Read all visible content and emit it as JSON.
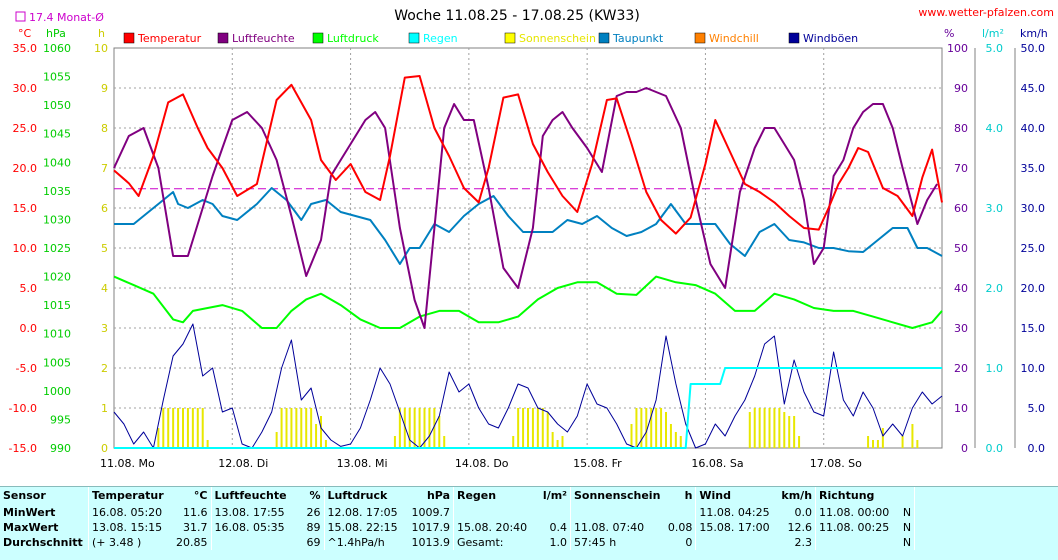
{
  "header": {
    "title": "Woche 11.08.25 - 17.08.25 (KW33)",
    "site": "www.wetter-pfalzen.com",
    "monthly_avg_label": "17.4 Monat-Ø"
  },
  "units": {
    "temp": "°C",
    "pressure": "hPa",
    "sun": "h",
    "humidity": "%",
    "rain": "l/m²",
    "wind": "km/h"
  },
  "chart_data": {
    "type": "line",
    "title": "Woche 11.08.25 - 17.08.25 (KW33)",
    "x_labels": [
      "11.08. Mo",
      "12.08. Di",
      "13.08. Mi",
      "14.08. Do",
      "15.08. Fr",
      "16.08. Sa",
      "17.08. So"
    ],
    "x_range_hours": [
      0,
      168
    ],
    "axes": {
      "temp": {
        "ticks": [
          "35.0",
          "30.0",
          "25.0",
          "20.0",
          "15.0",
          "10.0",
          "5.0",
          "0.0",
          "-5.0",
          "-10.0",
          "-15.0"
        ],
        "range": [
          -15,
          35
        ],
        "color": "#ff0000"
      },
      "pressure": {
        "ticks": [
          "1060",
          "1055",
          "1050",
          "1045",
          "1040",
          "1035",
          "1030",
          "1025",
          "1020",
          "1015",
          "1010",
          "1005",
          "1000",
          "995",
          "990"
        ],
        "range": [
          990,
          1060
        ],
        "color": "#00cc00"
      },
      "sun": {
        "ticks": [
          "10",
          "9",
          "8",
          "7",
          "6",
          "5",
          "4",
          "3",
          "2",
          "1",
          "0"
        ],
        "range": [
          0,
          10
        ],
        "color": "#cccc00"
      },
      "humidity": {
        "ticks": [
          "100",
          "90",
          "80",
          "70",
          "60",
          "50",
          "40",
          "30",
          "20",
          "10",
          "0"
        ],
        "range": [
          0,
          100
        ],
        "color": "#660099"
      },
      "rain": {
        "ticks": [
          "5.0",
          "4.0",
          "3.0",
          "2.0",
          "1.0",
          "0.0"
        ],
        "range": [
          0,
          5
        ],
        "color": "#00cccc"
      },
      "wind": {
        "ticks": [
          "50.0",
          "45.0",
          "40.0",
          "35.0",
          "30.0",
          "25.0",
          "20.0",
          "15.0",
          "10.0",
          "5.0",
          "0.0"
        ],
        "range": [
          0,
          50
        ],
        "color": "#000099"
      }
    },
    "legend": [
      {
        "name": "Temperatur",
        "color": "#ff0000"
      },
      {
        "name": "Luftfeuchte",
        "color": "#800080"
      },
      {
        "name": "Luftdruck",
        "color": "#00ff00"
      },
      {
        "name": "Regen",
        "color": "#00ffff"
      },
      {
        "name": "Sonnenschein",
        "color": "#ffff00"
      },
      {
        "name": "Taupunkt",
        "color": "#0080c0"
      },
      {
        "name": "Windchill",
        "color": "#ff8000"
      },
      {
        "name": "Windböen",
        "color": "#000099"
      }
    ],
    "monthly_avg_temp": 17.4,
    "series": [
      {
        "name": "Temperatur",
        "axis": "temp",
        "color": "#ff0000",
        "x": [
          0,
          3,
          5,
          8,
          11,
          14,
          17,
          19,
          22,
          25,
          29,
          33,
          36,
          40,
          42,
          45,
          48,
          51,
          54,
          56,
          59,
          62,
          65,
          68,
          71,
          74,
          76,
          79,
          82,
          85,
          88,
          91,
          94,
          97,
          100,
          102,
          105,
          108,
          111,
          114,
          117,
          120,
          122,
          125,
          128,
          131,
          134,
          137,
          140,
          143,
          145,
          147,
          149,
          151,
          153,
          156,
          159,
          162,
          164,
          166,
          168
        ],
        "y": [
          19.7,
          18.1,
          16.5,
          21.5,
          28.2,
          29.2,
          25,
          22.5,
          20,
          16.5,
          18,
          28.5,
          30.4,
          26,
          21,
          18.5,
          20.5,
          17,
          16,
          21.5,
          31.3,
          31.5,
          25,
          21.5,
          17.5,
          15.7,
          20,
          28.8,
          29.2,
          23,
          19.5,
          16.5,
          14.5,
          20.5,
          28.5,
          28.7,
          23,
          17,
          13.5,
          11.8,
          13.8,
          20.5,
          26,
          22,
          18,
          17,
          15.7,
          14,
          12.5,
          12.3,
          15,
          18,
          20,
          22.5,
          22,
          17.5,
          16.5,
          14,
          18.8,
          22.3,
          15.7
        ]
      },
      {
        "name": "Luftfeuchte",
        "axis": "humidity",
        "color": "#800080",
        "x": [
          0,
          3,
          6,
          9,
          12,
          15,
          18,
          20,
          22,
          24,
          27,
          30,
          33,
          36,
          39,
          42,
          44,
          46,
          48,
          51,
          53,
          55,
          58,
          61,
          63,
          65,
          67,
          69,
          71,
          73,
          76,
          79,
          82,
          85,
          87,
          89,
          91,
          93,
          96,
          99,
          102,
          104,
          106,
          108,
          110,
          112,
          115,
          118,
          121,
          124,
          127,
          130,
          132,
          134,
          136,
          138,
          140,
          142,
          144,
          146,
          148,
          150,
          152,
          154,
          156,
          158,
          160,
          163,
          165,
          167
        ],
        "y": [
          70,
          78,
          80,
          70,
          48,
          48,
          60,
          68,
          75,
          82,
          84,
          80,
          72,
          58,
          43,
          52,
          68,
          72,
          76,
          82,
          84,
          80,
          55,
          37,
          30,
          55,
          80,
          86,
          82,
          82,
          65,
          45,
          40,
          55,
          78,
          82,
          84,
          80,
          75,
          69,
          88,
          89,
          89,
          90,
          89,
          88,
          80,
          62,
          46,
          40,
          64,
          75,
          80,
          80,
          76,
          72,
          62,
          46,
          50,
          68,
          72,
          80,
          84,
          86,
          86,
          80,
          70,
          56,
          62,
          66
        ]
      },
      {
        "name": "Luftdruck",
        "axis": "pressure",
        "color": "#00ff00",
        "x": [
          0,
          4,
          8,
          12,
          14,
          16,
          19,
          22,
          26,
          30,
          33,
          36,
          39,
          42,
          46,
          50,
          54,
          58,
          62,
          66,
          70,
          74,
          78,
          82,
          86,
          90,
          94,
          98,
          102,
          106,
          110,
          114,
          118,
          122,
          126,
          130,
          134,
          138,
          142,
          146,
          150,
          154,
          158,
          162,
          166,
          168
        ],
        "y": [
          1020,
          1018.5,
          1017,
          1012.5,
          1012,
          1014,
          1014.5,
          1015,
          1014,
          1011,
          1011,
          1014,
          1016,
          1017,
          1015,
          1012.5,
          1011,
          1011,
          1013,
          1014,
          1014,
          1012,
          1012,
          1013,
          1016,
          1018,
          1019,
          1019,
          1017,
          1016.8,
          1020,
          1019,
          1018.5,
          1017,
          1014,
          1014,
          1017,
          1016,
          1014.5,
          1014,
          1014,
          1013,
          1012,
          1011,
          1012,
          1014
        ]
      },
      {
        "name": "Taupunkt",
        "axis": "temp",
        "color": "#0080c0",
        "x": [
          0,
          4,
          8,
          10,
          12,
          13,
          15,
          18,
          20,
          22,
          25,
          29,
          32,
          35,
          38,
          40,
          43,
          46,
          49,
          52,
          55,
          58,
          60,
          62,
          65,
          68,
          71,
          74,
          77,
          80,
          83,
          86,
          89,
          92,
          95,
          98,
          101,
          104,
          107,
          110,
          113,
          116,
          119,
          122,
          125,
          128,
          131,
          134,
          137,
          140,
          143,
          146,
          149,
          152,
          155,
          158,
          161,
          163,
          165,
          168
        ],
        "y": [
          13,
          13,
          15,
          16,
          17,
          15.5,
          15,
          16,
          15.5,
          14,
          13.5,
          15.5,
          17.5,
          16,
          13.5,
          15.5,
          16,
          14.5,
          14,
          13.5,
          11,
          8,
          10,
          10,
          13,
          12,
          14,
          15.5,
          16.5,
          14,
          12,
          12,
          12,
          13.5,
          13,
          14,
          12.5,
          11.5,
          12,
          13,
          15.5,
          13,
          13,
          13,
          10.5,
          9,
          12,
          13,
          11,
          10.7,
          10,
          10,
          9.6,
          9.5,
          11,
          12.5,
          12.5,
          10,
          10,
          9
        ]
      },
      {
        "name": "Windböen",
        "axis": "wind",
        "color": "#000099",
        "x": [
          0,
          2,
          4,
          6,
          8,
          10,
          12,
          14,
          16,
          18,
          20,
          22,
          24,
          26,
          28,
          30,
          32,
          34,
          36,
          38,
          40,
          42,
          44,
          46,
          48,
          50,
          52,
          54,
          56,
          58,
          60,
          62,
          64,
          66,
          68,
          70,
          72,
          74,
          76,
          78,
          80,
          82,
          84,
          86,
          88,
          90,
          92,
          94,
          96,
          98,
          100,
          102,
          104,
          106,
          108,
          110,
          112,
          114,
          116,
          118,
          120,
          122,
          124,
          126,
          128,
          130,
          132,
          134,
          136,
          138,
          140,
          142,
          144,
          146,
          148,
          150,
          152,
          154,
          156,
          158,
          160,
          162,
          164,
          166,
          168
        ],
        "y": [
          4.5,
          3,
          0.5,
          2,
          0,
          6,
          11.5,
          13,
          15.5,
          9,
          10,
          4.5,
          5,
          0.5,
          0,
          2,
          4.5,
          10,
          13.5,
          6,
          7.5,
          2.5,
          1,
          0.2,
          0.5,
          2.5,
          6,
          10,
          8,
          4.5,
          1,
          0,
          1.5,
          4,
          9.5,
          7,
          8,
          5,
          3,
          2.5,
          5,
          8,
          7.5,
          5,
          4.5,
          3,
          2,
          4,
          8,
          5.5,
          5,
          3,
          0.5,
          0,
          2,
          6,
          14,
          8,
          3,
          0,
          0.5,
          3,
          1.5,
          4,
          6,
          9,
          13,
          14,
          5.5,
          11,
          7,
          4.5,
          4,
          12,
          6,
          4,
          7,
          5,
          1.5,
          3,
          1.5,
          5,
          7,
          5.5,
          6.5
        ]
      },
      {
        "name": "Regen",
        "axis": "rain",
        "color": "#00ffff",
        "x": [
          0,
          116,
          117,
          120,
          123,
          124,
          126,
          168
        ],
        "y": [
          0,
          0,
          0.8,
          0.8,
          0.8,
          1.0,
          1.0,
          1.0
        ]
      },
      {
        "name": "Sonnenschein",
        "axis": "sun",
        "color": "#ffff00",
        "type": "bar",
        "x": [
          9,
          10,
          11,
          12,
          13,
          14,
          15,
          16,
          17,
          18,
          19,
          33,
          34,
          35,
          36,
          37,
          38,
          39,
          40,
          41,
          42,
          43,
          57,
          58,
          59,
          60,
          61,
          62,
          63,
          64,
          65,
          66,
          67,
          81,
          82,
          83,
          84,
          85,
          86,
          87,
          88,
          89,
          90,
          91,
          105,
          106,
          107,
          108,
          109,
          110,
          111,
          112,
          113,
          114,
          115,
          129,
          130,
          131,
          132,
          133,
          134,
          135,
          136,
          137,
          138,
          139,
          153,
          154,
          155,
          156,
          160,
          162,
          163
        ],
        "y": [
          0.5,
          1,
          1,
          1,
          1,
          1,
          1,
          1,
          1,
          1,
          0.2,
          0.4,
          1,
          1,
          1,
          1,
          1,
          1,
          1,
          0.6,
          0.8,
          0.2,
          0.3,
          1,
          1,
          1,
          1,
          1,
          1,
          1,
          1,
          0.8,
          0.3,
          0.3,
          1,
          1,
          1,
          1,
          1,
          1,
          0.9,
          0.4,
          0.2,
          0.3,
          0.6,
          1,
          1,
          1,
          1,
          1,
          1,
          0.9,
          0.6,
          0.4,
          0.3,
          0.9,
          1,
          1,
          1,
          1,
          1,
          1,
          0.9,
          0.8,
          0.8,
          0.3,
          0.3,
          0.2,
          0.2,
          0.5,
          0.3,
          0.6,
          0.2
        ]
      }
    ]
  },
  "summary": {
    "headers": [
      "Sensor",
      "Temperatur",
      "°C",
      "Luftfeuchte",
      "%",
      "Luftdruck",
      "hPa",
      "Regen",
      "l/m²",
      "Sonnenschein",
      "h",
      "Wind",
      "km/h",
      "Richtung"
    ],
    "rows": [
      {
        "label": "MinWert",
        "cells": [
          "16.08. 05:20",
          "11.6",
          "13.08. 17:55",
          "26",
          "12.08. 17:05",
          "1009.7",
          "",
          "",
          "",
          "",
          "11.08. 04:25",
          "0.0",
          "11.08. 00:00",
          "N"
        ]
      },
      {
        "label": "MaxWert",
        "cells": [
          "13.08. 15:15",
          "31.7",
          "16.08. 05:35",
          "89",
          "15.08. 22:15",
          "1017.9",
          "15.08. 20:40",
          "0.4",
          "11.08. 07:40",
          "0.08",
          "15.08. 17:00",
          "12.6",
          "11.08. 00:25",
          "N"
        ]
      },
      {
        "label": "Durchschnitt",
        "cells": [
          "(+ 3.48 )",
          "20.85",
          "",
          "69",
          "^1.4hPa/h",
          "1013.9",
          "Gesamt:",
          "1.0",
          "57:45 h",
          "0",
          "",
          "2.3",
          "",
          "N"
        ]
      }
    ]
  }
}
